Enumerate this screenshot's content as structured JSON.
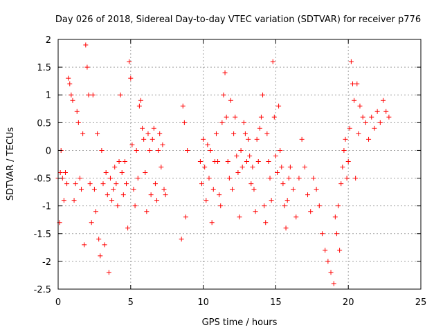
{
  "chart_data": {
    "type": "scatter",
    "title": "Day 026 of 2018, Sidereal Day-to-day VTEC variation (SDTVAR) for receiver p776",
    "xlabel": "GPS time / hours",
    "ylabel": "SDTVAR / TECUs",
    "xlim": [
      0,
      25
    ],
    "ylim": [
      -2.5,
      2
    ],
    "xticks": [
      0,
      5,
      10,
      15,
      20,
      25
    ],
    "yticks": [
      -2.5,
      -2,
      -1.5,
      -1,
      -0.5,
      0,
      0.5,
      1,
      1.5,
      2
    ],
    "xtick_labels": [
      "0",
      "5",
      "10",
      "15",
      "20",
      "25"
    ],
    "ytick_labels": [
      "-2.5",
      "-2",
      "-1.5",
      "-1",
      "-0.5",
      "0",
      "0.5",
      "1",
      "1.5",
      "2"
    ],
    "grid": true,
    "marker": "+",
    "color": "#ff0000",
    "series": [
      {
        "name": "SDTVAR",
        "points": [
          [
            0.0,
            -0.5
          ],
          [
            0.1,
            -1.3
          ],
          [
            0.15,
            -0.4
          ],
          [
            0.2,
            0.0
          ],
          [
            0.3,
            -0.5
          ],
          [
            0.4,
            -0.9
          ],
          [
            0.5,
            -0.4
          ],
          [
            0.6,
            -0.6
          ],
          [
            0.7,
            1.3
          ],
          [
            0.8,
            1.2
          ],
          [
            0.9,
            1.0
          ],
          [
            1.0,
            0.9
          ],
          [
            1.1,
            -0.9
          ],
          [
            1.2,
            -0.6
          ],
          [
            1.3,
            0.7
          ],
          [
            1.4,
            0.5
          ],
          [
            1.5,
            -0.5
          ],
          [
            1.6,
            -0.7
          ],
          [
            1.7,
            0.3
          ],
          [
            1.8,
            -1.7
          ],
          [
            1.9,
            1.9
          ],
          [
            2.0,
            1.5
          ],
          [
            2.1,
            1.0
          ],
          [
            2.2,
            -0.6
          ],
          [
            2.3,
            -1.3
          ],
          [
            2.4,
            1.0
          ],
          [
            2.5,
            -0.7
          ],
          [
            2.6,
            -1.1
          ],
          [
            2.7,
            0.3
          ],
          [
            2.8,
            -1.6
          ],
          [
            2.9,
            -1.9
          ],
          [
            3.0,
            0.0
          ],
          [
            3.1,
            -0.6
          ],
          [
            3.2,
            -1.7
          ],
          [
            3.3,
            -0.4
          ],
          [
            3.4,
            -0.8
          ],
          [
            3.5,
            -2.2
          ],
          [
            3.6,
            -0.5
          ],
          [
            3.7,
            -0.9
          ],
          [
            3.8,
            -0.7
          ],
          [
            3.9,
            -0.3
          ],
          [
            4.0,
            -0.6
          ],
          [
            4.1,
            -1.0
          ],
          [
            4.2,
            -0.2
          ],
          [
            4.3,
            1.0
          ],
          [
            4.4,
            -0.4
          ],
          [
            4.5,
            -0.8
          ],
          [
            4.6,
            -0.2
          ],
          [
            4.7,
            -0.6
          ],
          [
            4.8,
            -1.4
          ],
          [
            4.9,
            1.6
          ],
          [
            5.0,
            1.3
          ],
          [
            5.1,
            0.1
          ],
          [
            5.2,
            -0.7
          ],
          [
            5.3,
            -1.0
          ],
          [
            5.4,
            0.0
          ],
          [
            5.5,
            -0.5
          ],
          [
            5.6,
            0.8
          ],
          [
            5.7,
            0.9
          ],
          [
            5.8,
            0.4
          ],
          [
            5.9,
            0.2
          ],
          [
            6.0,
            -0.4
          ],
          [
            6.1,
            -1.1
          ],
          [
            6.2,
            0.3
          ],
          [
            6.3,
            0.0
          ],
          [
            6.4,
            -0.8
          ],
          [
            6.5,
            0.2
          ],
          [
            6.6,
            0.4
          ],
          [
            6.7,
            -0.6
          ],
          [
            6.8,
            -0.9
          ],
          [
            6.9,
            0.0
          ],
          [
            7.0,
            0.3
          ],
          [
            7.1,
            -0.3
          ],
          [
            7.2,
            0.1
          ],
          [
            7.3,
            -0.7
          ],
          [
            7.4,
            -0.8
          ],
          [
            8.5,
            -1.6
          ],
          [
            8.6,
            0.8
          ],
          [
            8.7,
            0.5
          ],
          [
            8.8,
            -1.2
          ],
          [
            8.9,
            0.0
          ],
          [
            9.8,
            -0.2
          ],
          [
            9.9,
            -0.6
          ],
          [
            10.0,
            0.2
          ],
          [
            10.1,
            -0.3
          ],
          [
            10.2,
            -0.9
          ],
          [
            10.3,
            0.1
          ],
          [
            10.4,
            -0.5
          ],
          [
            10.5,
            0.0
          ],
          [
            10.6,
            -1.3
          ],
          [
            10.7,
            -0.7
          ],
          [
            10.8,
            -0.2
          ],
          [
            10.9,
            0.3
          ],
          [
            11.0,
            -0.2
          ],
          [
            11.1,
            -0.8
          ],
          [
            11.2,
            -1.0
          ],
          [
            11.3,
            0.5
          ],
          [
            11.4,
            1.0
          ],
          [
            11.5,
            1.4
          ],
          [
            11.6,
            0.6
          ],
          [
            11.7,
            -0.2
          ],
          [
            11.8,
            -0.5
          ],
          [
            11.9,
            0.9
          ],
          [
            12.0,
            -0.7
          ],
          [
            12.1,
            0.3
          ],
          [
            12.2,
            0.6
          ],
          [
            12.3,
            -0.1
          ],
          [
            12.4,
            -0.4
          ],
          [
            12.5,
            -1.2
          ],
          [
            12.6,
            0.0
          ],
          [
            12.7,
            -0.3
          ],
          [
            12.8,
            0.5
          ],
          [
            12.9,
            0.3
          ],
          [
            13.0,
            -0.2
          ],
          [
            13.1,
            0.2
          ],
          [
            13.2,
            -0.1
          ],
          [
            13.3,
            -0.6
          ],
          [
            13.4,
            -0.3
          ],
          [
            13.5,
            -0.7
          ],
          [
            13.6,
            -1.1
          ],
          [
            13.7,
            0.2
          ],
          [
            13.8,
            -0.2
          ],
          [
            13.9,
            0.4
          ],
          [
            14.0,
            0.6
          ],
          [
            14.1,
            1.0
          ],
          [
            14.2,
            -1.0
          ],
          [
            14.3,
            -1.3
          ],
          [
            14.4,
            0.3
          ],
          [
            14.5,
            -0.2
          ],
          [
            14.6,
            -0.5
          ],
          [
            14.7,
            -0.9
          ],
          [
            14.8,
            1.6
          ],
          [
            14.9,
            0.6
          ],
          [
            15.0,
            -0.1
          ],
          [
            15.1,
            -0.4
          ],
          [
            15.2,
            0.8
          ],
          [
            15.3,
            0.0
          ],
          [
            15.4,
            -0.3
          ],
          [
            15.5,
            -0.6
          ],
          [
            15.6,
            -1.0
          ],
          [
            15.7,
            -1.4
          ],
          [
            15.8,
            -0.9
          ],
          [
            15.9,
            -0.5
          ],
          [
            16.0,
            -0.3
          ],
          [
            16.2,
            -0.7
          ],
          [
            16.4,
            -1.2
          ],
          [
            16.6,
            -0.5
          ],
          [
            16.8,
            0.2
          ],
          [
            17.0,
            -0.3
          ],
          [
            17.2,
            -0.8
          ],
          [
            17.4,
            -1.1
          ],
          [
            17.6,
            -0.5
          ],
          [
            17.8,
            -0.7
          ],
          [
            18.0,
            -1.0
          ],
          [
            18.2,
            -1.5
          ],
          [
            18.4,
            -1.8
          ],
          [
            18.6,
            -2.0
          ],
          [
            18.8,
            -2.2
          ],
          [
            19.0,
            -2.4
          ],
          [
            19.1,
            -1.2
          ],
          [
            19.2,
            -1.5
          ],
          [
            19.3,
            -1.0
          ],
          [
            19.4,
            -1.8
          ],
          [
            19.5,
            -0.6
          ],
          [
            19.6,
            -0.3
          ],
          [
            19.7,
            0.0
          ],
          [
            19.8,
            0.2
          ],
          [
            19.9,
            -0.5
          ],
          [
            20.0,
            -0.2
          ],
          [
            20.1,
            0.4
          ],
          [
            20.2,
            1.6
          ],
          [
            20.3,
            1.2
          ],
          [
            20.4,
            0.9
          ],
          [
            20.5,
            -0.5
          ],
          [
            20.6,
            1.2
          ],
          [
            20.7,
            0.3
          ],
          [
            20.8,
            0.8
          ],
          [
            21.0,
            0.6
          ],
          [
            21.2,
            0.5
          ],
          [
            21.4,
            0.2
          ],
          [
            21.6,
            0.6
          ],
          [
            21.8,
            0.4
          ],
          [
            22.0,
            0.7
          ],
          [
            22.2,
            0.5
          ],
          [
            22.4,
            0.9
          ],
          [
            22.6,
            0.7
          ],
          [
            22.8,
            0.6
          ]
        ]
      }
    ]
  }
}
